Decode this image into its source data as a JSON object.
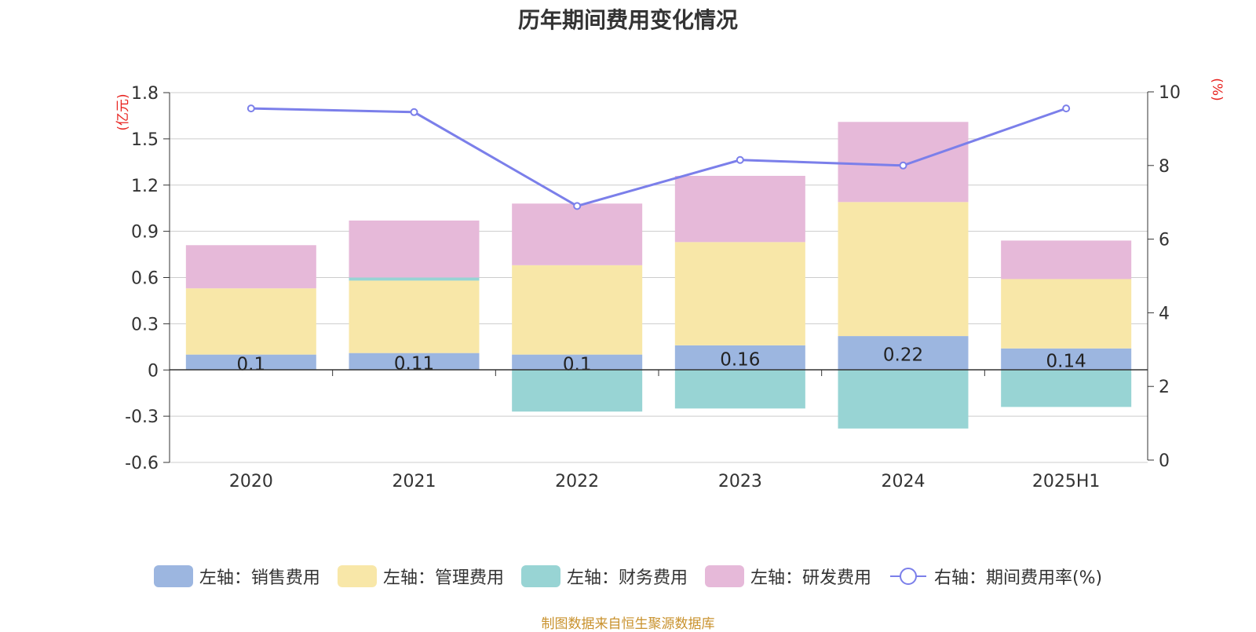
{
  "chart_data": {
    "type": "bar",
    "title": "历年期间费用变化情况",
    "categories": [
      "2020",
      "2021",
      "2022",
      "2023",
      "2024",
      "2025H1"
    ],
    "left_axis": {
      "unit": "(亿元)",
      "ylim": [
        -0.6,
        1.8
      ],
      "ticks": [
        "1.8",
        "1.5",
        "1.2",
        "0.9",
        "0.6",
        "0.3",
        "0",
        "-0.3",
        "-0.6"
      ],
      "tick_values": [
        1.8,
        1.5,
        1.2,
        0.9,
        0.6,
        0.3,
        0,
        -0.3,
        -0.6
      ]
    },
    "right_axis": {
      "unit": "(%)",
      "ylim": [
        0,
        10
      ],
      "ticks": [
        "10",
        "8",
        "6",
        "4",
        "2",
        "0"
      ],
      "tick_values": [
        10,
        8,
        6,
        4,
        2,
        0
      ]
    },
    "series": [
      {
        "name": "左轴：销售费用",
        "type": "bar",
        "color": "#9cb6e0",
        "values": [
          0.1,
          0.11,
          0.1,
          0.16,
          0.22,
          0.14
        ],
        "labels": [
          "0.1",
          "0.11",
          "0.1",
          "0.16",
          "0.22",
          "0.14"
        ]
      },
      {
        "name": "左轴：管理费用",
        "type": "bar",
        "color": "#f8e7a8",
        "values": [
          0.43,
          0.47,
          0.58,
          0.67,
          0.87,
          0.45
        ]
      },
      {
        "name": "左轴：财务费用",
        "type": "bar",
        "color": "#98d4d4",
        "values": [
          0.0,
          0.02,
          -0.27,
          -0.25,
          -0.38,
          -0.24
        ]
      },
      {
        "name": "左轴：研发费用",
        "type": "bar",
        "color": "#e6b9d9",
        "values": [
          0.28,
          0.37,
          0.4,
          0.43,
          0.52,
          0.25
        ]
      },
      {
        "name": "右轴：期间费用率(%)",
        "type": "line",
        "color": "#7b7fea",
        "values": [
          9.55,
          9.45,
          6.9,
          8.15,
          8.0,
          9.55
        ]
      }
    ],
    "legend_position": "bottom",
    "grid": true
  },
  "source_note": "制图数据来自恒生聚源数据库"
}
